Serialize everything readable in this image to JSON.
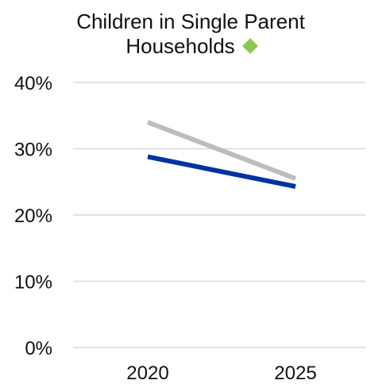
{
  "title_line1": "Children in Single Parent",
  "title_line2": "Households",
  "title_marker": {
    "icon": "diamond-icon",
    "color": "#8CC751"
  },
  "chart_data": {
    "type": "line",
    "title": "Children in Single Parent Households",
    "categories": [
      "2020",
      "2025"
    ],
    "series": [
      {
        "color": "#BDBDBD",
        "values": [
          34,
          25.5
        ]
      },
      {
        "color": "#0033A0",
        "values": [
          28.8,
          24.3
        ]
      }
    ],
    "ylim": [
      0,
      40
    ],
    "yticks": [
      0,
      10,
      20,
      30,
      40
    ],
    "ytick_labels": [
      "0%",
      "10%",
      "20%",
      "30%",
      "40%"
    ],
    "grid": true,
    "grid_color": "#D9D9D9"
  }
}
